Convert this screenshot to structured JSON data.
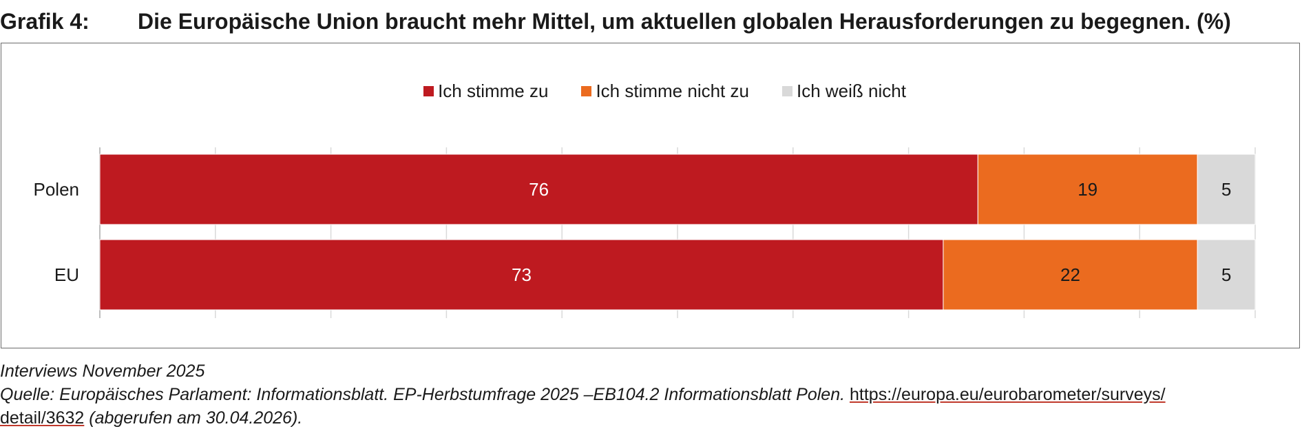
{
  "title": {
    "number": "Grafik 4:",
    "text": "Die Europäische Union braucht mehr Mittel, um aktuellen globalen Herausforderungen zu begegnen. (%)"
  },
  "legend": [
    {
      "label": "Ich stimme zu",
      "color": "#be1a20"
    },
    {
      "label": "Ich stimme nicht zu",
      "color": "#eb6b1f"
    },
    {
      "label": "Ich weiß nicht",
      "color": "#d9d9d9"
    }
  ],
  "chart_data": {
    "type": "bar",
    "orientation": "horizontal-stacked-100",
    "categories": [
      "Polen",
      "EU"
    ],
    "series": [
      {
        "name": "Ich stimme zu",
        "values": [
          76,
          73
        ],
        "color": "#be1a20",
        "label_color": "#ffffff"
      },
      {
        "name": "Ich stimme nicht zu",
        "values": [
          19,
          22
        ],
        "color": "#eb6b1f",
        "label_color": "#1a1a1a"
      },
      {
        "name": "Ich weiß nicht",
        "values": [
          5,
          5
        ],
        "color": "#d9d9d9",
        "label_color": "#1a1a1a"
      }
    ],
    "xlim": [
      0,
      100
    ],
    "grid": true,
    "legend_position": "top-center"
  },
  "footer": {
    "line1": "Interviews November 2025",
    "source_prefix": "Quelle: Europäisches Parlament: Informationsblatt. EP-Herbstumfrage 2025 –EB104.2 Informationsblatt Polen. ",
    "link_part1": "https://europa.eu/eurobarometer/surveys/",
    "link_part2": "detail/3632",
    "source_suffix": " (abgerufen am 30.04.2026)."
  }
}
